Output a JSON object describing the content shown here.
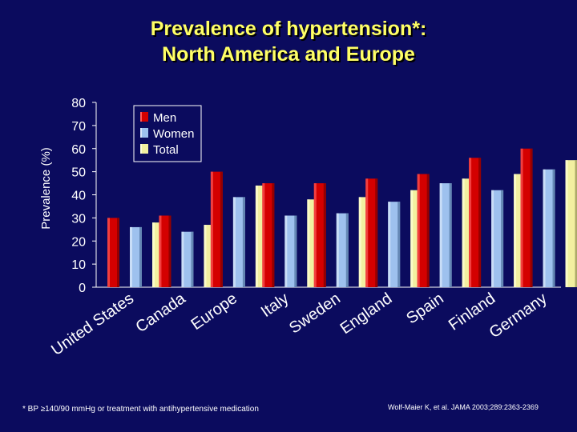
{
  "slide": {
    "title_line1": "Prevalence of hypertension*:",
    "title_line2": "North America and Europe",
    "footnote": "* BP ≥140/90 mmHg or treatment with antihypertensive medication",
    "citation": "Wolf-Maier K, et al. JAMA 2003;289:2363-2369"
  },
  "colors": {
    "background": "#0b0b5e",
    "title": "#ffff66",
    "men": "#d40000",
    "women": "#9ec1ee",
    "total": "#f2f0a0"
  },
  "chart_data": {
    "type": "bar",
    "title": "Prevalence of hypertension*: North America and Europe",
    "ylabel": "Prevalence (%)",
    "xlabel": "",
    "ylim": [
      0,
      80
    ],
    "yticks": [
      0,
      10,
      20,
      30,
      40,
      50,
      60,
      70,
      80
    ],
    "grid": false,
    "legend_position": "top-left",
    "categories": [
      "United States",
      "Canada",
      "Europe",
      "Italy",
      "Sweden",
      "England",
      "Spain",
      "Finland",
      "Germany"
    ],
    "series": [
      {
        "name": "Men",
        "values": [
          30,
          31,
          50,
          45,
          45,
          47,
          49,
          56,
          60
        ]
      },
      {
        "name": "Women",
        "values": [
          26,
          24,
          39,
          31,
          32,
          37,
          45,
          42,
          51
        ]
      },
      {
        "name": "Total",
        "values": [
          28,
          27,
          44,
          38,
          39,
          42,
          47,
          49,
          55
        ]
      }
    ]
  }
}
